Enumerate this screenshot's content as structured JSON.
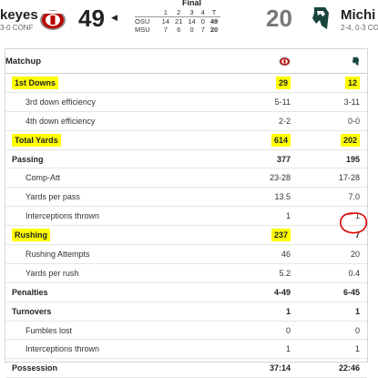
{
  "header": {
    "left_team": {
      "name": "keyes",
      "record": "3-0 CONF",
      "score": "49",
      "logo": "ohio-state-logo"
    },
    "right_team": {
      "name": "Michi",
      "record": "2-4, 0-3 CO",
      "score": "20",
      "logo": "michigan-state-logo"
    },
    "status": "Final",
    "linescore": {
      "headers": [
        "",
        "1",
        "2",
        "3",
        "4",
        "T"
      ],
      "rows": [
        {
          "team": "OSU",
          "q": [
            "14",
            "21",
            "14",
            "0"
          ],
          "total": "49"
        },
        {
          "team": "MSU",
          "q": [
            "7",
            "6",
            "0",
            "7"
          ],
          "total": "20"
        }
      ]
    }
  },
  "matchup": {
    "title": "Matchup",
    "rows": [
      {
        "label": "1st Downs",
        "osu": "29",
        "msu": "12"
      },
      {
        "label": "3rd down efficiency",
        "osu": "5-11",
        "msu": "3-11"
      },
      {
        "label": "4th down efficiency",
        "osu": "2-2",
        "msu": "0-0"
      },
      {
        "label": "Total Yards",
        "osu": "614",
        "msu": "202"
      },
      {
        "label": "Passing",
        "osu": "377",
        "msu": "195"
      },
      {
        "label": "Comp-Att",
        "osu": "23-28",
        "msu": "17-28"
      },
      {
        "label": "Yards per pass",
        "osu": "13.5",
        "msu": "7.0"
      },
      {
        "label": "Interceptions thrown",
        "osu": "1",
        "msu": "1"
      },
      {
        "label": "Rushing",
        "osu": "237",
        "msu": "7"
      },
      {
        "label": "Rushing Attempts",
        "osu": "46",
        "msu": "20"
      },
      {
        "label": "Yards per rush",
        "osu": "5.2",
        "msu": "0.4"
      },
      {
        "label": "Penalties",
        "osu": "4-49",
        "msu": "6-45"
      },
      {
        "label": "Turnovers",
        "osu": "1",
        "msu": "1"
      },
      {
        "label": "Fumbles lost",
        "osu": "0",
        "msu": "0"
      },
      {
        "label": "Interceptions thrown",
        "osu": "1",
        "msu": "1"
      },
      {
        "label": "Possession",
        "osu": "37:14",
        "msu": "22:46"
      }
    ]
  },
  "colors": {
    "highlight": "#ffff00",
    "osu_red": "#bb0000",
    "msu_green": "#18453b",
    "annotation_red": "#e00000"
  }
}
